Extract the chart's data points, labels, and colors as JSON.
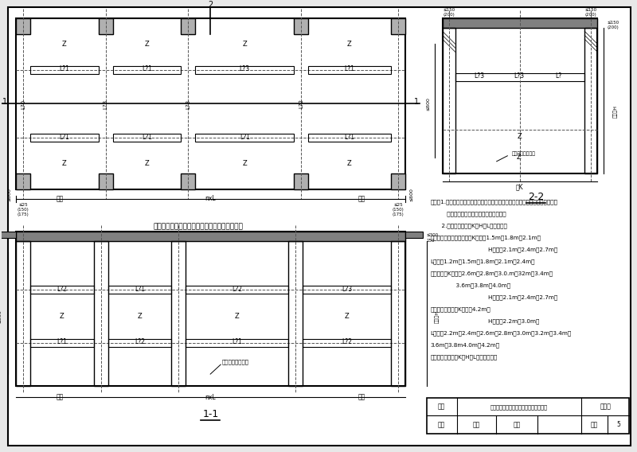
{
  "bg_color": "#e8e8e8",
  "drawing_bg": "#ffffff",
  "line_color": "#000000",
  "dashed_color": "#555555",
  "plan_title": "嵌立式室外出入口防钢爆棚架平面布置图（一）",
  "section_title_11": "1-1",
  "section_title_22": "2-2",
  "note_lines": [
    "说明：1.本图适用于单跑楼梯、双跑楼梯、单车道汽车接送及自行车接送等独立式",
    "         室外出入口周框无遮蔽的防钢爆棚架。",
    "      2.防钢爆棚架的（K、H、L尺寸如下：",
    "单跑楼梯（自行车接送）：K分别为1.5m、1.8m、2.1m；",
    "                                H分别为2.1m、2.4m、2.7m；",
    "L分别为1.2m、1.5m、1.8m、2.1m、2.4m；",
    "双跑楼梯：K分别为2.6m、2.8m、3.0.m、32m、3.4m、",
    "              3.6m、3.8m、4.0m；",
    "                                H分别为2.1m、2.4m、2.7m；",
    "单车道汽车接送：K分别为4.2m；",
    "                                H分别为2.2m、3.0m；",
    "L分别为2.2m、2.4m、2.6m、2.8m、3.0m、3.2m、3.4m、",
    "3.6m、3.8m4.0m、4.2m。",
    "以上尺寸须按进格K、H、L的排列组合。"
  ],
  "table_title_text": "嵌立式室外出入口防钢爆棚架平面布置图",
  "table_row1": [
    "图名",
    "嵌立式室外出入口防钢爆棚架平面布置图",
    "图集号"
  ],
  "table_row2": [
    "审核",
    "校对",
    "设计",
    "负次",
    "5"
  ]
}
